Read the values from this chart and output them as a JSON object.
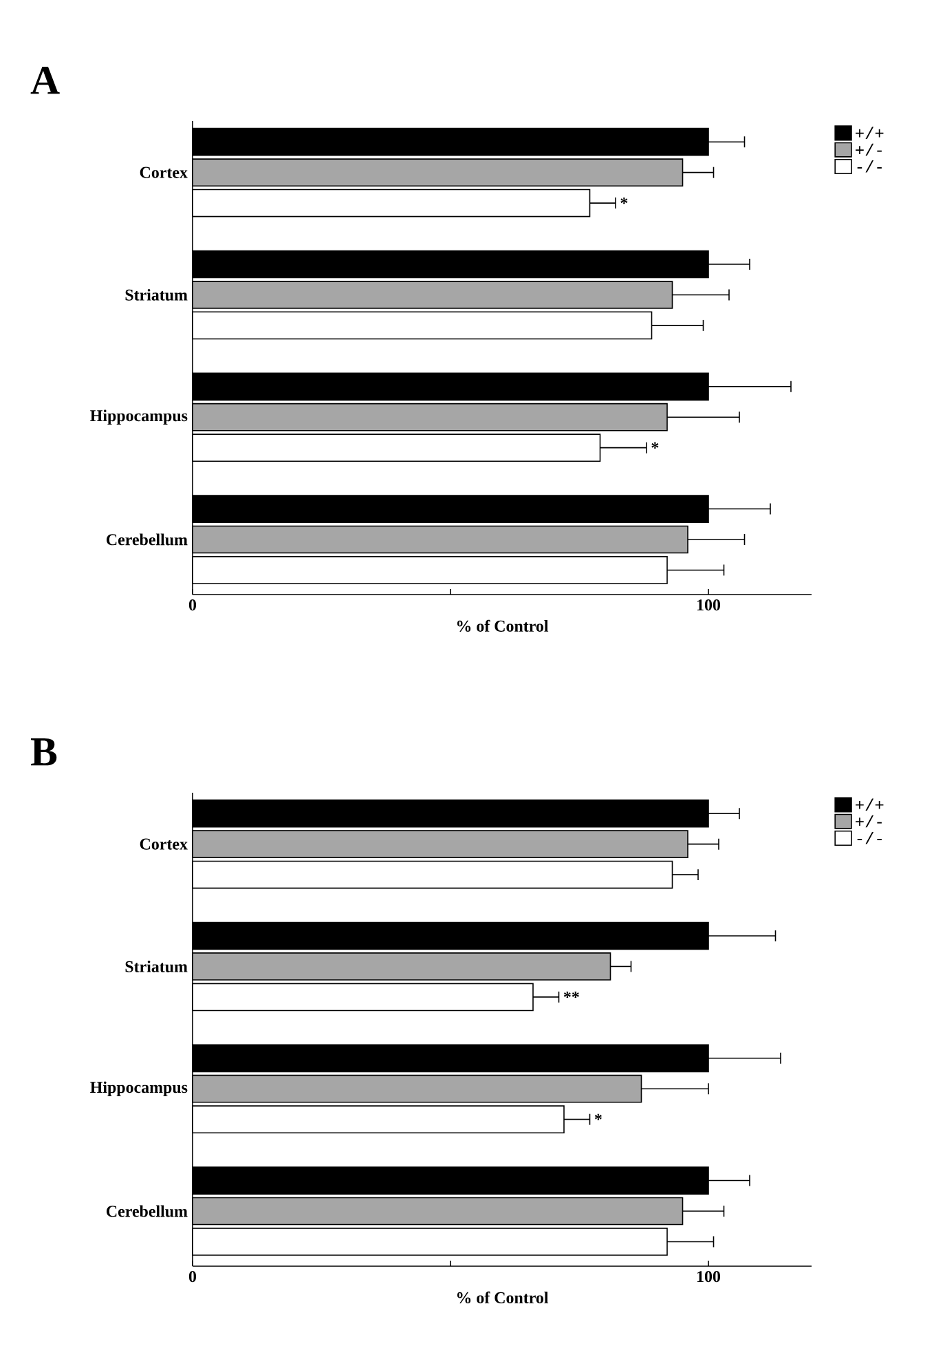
{
  "chart_data": [
    {
      "type": "bar",
      "title": "A",
      "orientation": "horizontal",
      "xlabel": "% of Control",
      "categories": [
        "Cortex",
        "Striatum",
        "Hippocampus",
        "Cerebellum"
      ],
      "series": [
        {
          "name": "+/+",
          "color": "#000000",
          "values": [
            100,
            100,
            100,
            100
          ],
          "errors": [
            7,
            8,
            16,
            12
          ]
        },
        {
          "name": "+/-",
          "color": "#a6a6a6",
          "values": [
            95,
            93,
            92,
            96
          ],
          "errors": [
            6,
            11,
            14,
            11
          ]
        },
        {
          "name": "-/-",
          "color": "#ffffff",
          "values": [
            77,
            89,
            79,
            92
          ],
          "errors": [
            5,
            10,
            9,
            11
          ],
          "value_labels": [
            "*",
            null,
            "*",
            null
          ]
        }
      ],
      "xlim": [
        0,
        120
      ],
      "xticks": [
        0,
        {
          "value": 50,
          "label": null
        },
        100
      ],
      "legend": "top right"
    },
    {
      "type": "bar",
      "title": "B",
      "orientation": "horizontal",
      "xlabel": "% of Control",
      "categories": [
        "Cortex",
        "Striatum",
        "Hippocampus",
        "Cerebellum"
      ],
      "series": [
        {
          "name": "+/+",
          "color": "#000000",
          "values": [
            100,
            100,
            100,
            100
          ],
          "errors": [
            6,
            13,
            14,
            8
          ]
        },
        {
          "name": "+/-",
          "color": "#a6a6a6",
          "values": [
            96,
            81,
            87,
            95
          ],
          "errors": [
            6,
            4,
            13,
            8
          ]
        },
        {
          "name": "-/-",
          "color": "#ffffff",
          "values": [
            93,
            66,
            72,
            92
          ],
          "errors": [
            5,
            5,
            5,
            9
          ],
          "value_labels": [
            null,
            "**",
            "*",
            null
          ]
        }
      ],
      "xlim": [
        0,
        120
      ],
      "xticks": [
        0,
        {
          "value": 50,
          "label": null
        },
        100
      ],
      "legend": "top right"
    }
  ]
}
